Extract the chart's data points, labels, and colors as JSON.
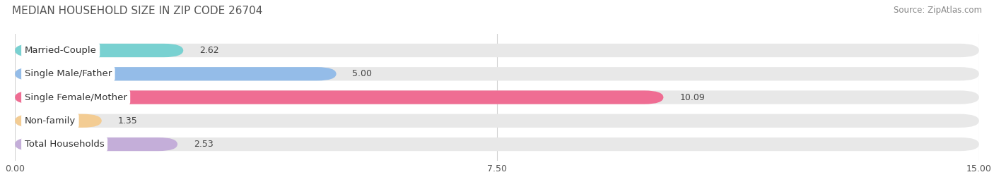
{
  "title": "MEDIAN HOUSEHOLD SIZE IN ZIP CODE 26704",
  "source": "Source: ZipAtlas.com",
  "categories": [
    "Married-Couple",
    "Single Male/Father",
    "Single Female/Mother",
    "Non-family",
    "Total Households"
  ],
  "values": [
    2.62,
    5.0,
    10.09,
    1.35,
    2.53
  ],
  "bar_colors": [
    "#6dcfcf",
    "#8bb8e8",
    "#f0608a",
    "#f5c98a",
    "#c0a8d8"
  ],
  "xlim": [
    0,
    15.0
  ],
  "xticks": [
    0.0,
    7.5,
    15.0
  ],
  "background_color": "#ffffff",
  "bar_bg_color": "#e8e8e8",
  "title_fontsize": 11,
  "source_fontsize": 8.5,
  "bar_label_fontsize": 9,
  "category_fontsize": 9.5,
  "bar_height": 0.58,
  "rounding": 0.3
}
